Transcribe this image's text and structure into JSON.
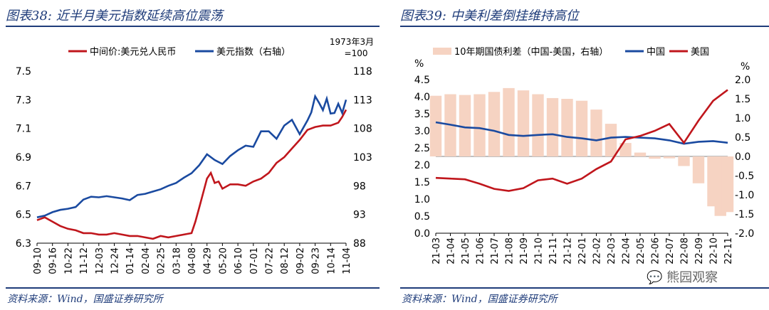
{
  "left": {
    "title": "图表38: 近半月美元指数延续高位震荡",
    "source": "资料来源：Wind，国盛证券研究所",
    "right_axis_note_1": "1973年3月",
    "right_axis_note_2": "=100",
    "chart_data": {
      "type": "line",
      "x_ticks": [
        "09-10",
        "09-16",
        "10-22",
        "11-12",
        "12-03",
        "12-24",
        "01-14",
        "02-04",
        "02-25",
        "03-18",
        "04-08",
        "04-29",
        "05-20",
        "06-10",
        "07-01",
        "07-22",
        "08-12",
        "09-02",
        "09-23",
        "10-14",
        "11-04"
      ],
      "left_ylim": [
        6.3,
        7.5
      ],
      "left_ticks": [
        "6.3",
        "6.5",
        "6.7",
        "6.9",
        "7.1",
        "7.3",
        "7.5"
      ],
      "right_ylim": [
        88,
        118
      ],
      "right_ticks": [
        "88",
        "93",
        "98",
        "103",
        "108",
        "113",
        "118"
      ],
      "series": [
        {
          "name": "中间价:美元兑人民币",
          "axis": "left",
          "color": "#c0161c",
          "values": [
            [
              0,
              6.46
            ],
            [
              2,
              6.48
            ],
            [
              4,
              6.45
            ],
            [
              6,
              6.42
            ],
            [
              8,
              6.4
            ],
            [
              10,
              6.39
            ],
            [
              12,
              6.37
            ],
            [
              14,
              6.37
            ],
            [
              16,
              6.36
            ],
            [
              18,
              6.36
            ],
            [
              20,
              6.37
            ],
            [
              22,
              6.36
            ],
            [
              24,
              6.35
            ],
            [
              26,
              6.35
            ],
            [
              28,
              6.34
            ],
            [
              30,
              6.33
            ],
            [
              32,
              6.35
            ],
            [
              34,
              6.34
            ],
            [
              36,
              6.35
            ],
            [
              38,
              6.36
            ],
            [
              40,
              6.37
            ],
            [
              41,
              6.45
            ],
            [
              42,
              6.55
            ],
            [
              43,
              6.65
            ],
            [
              44,
              6.75
            ],
            [
              45,
              6.79
            ],
            [
              46,
              6.72
            ],
            [
              47,
              6.73
            ],
            [
              48,
              6.68
            ],
            [
              50,
              6.71
            ],
            [
              52,
              6.71
            ],
            [
              54,
              6.7
            ],
            [
              56,
              6.73
            ],
            [
              58,
              6.75
            ],
            [
              60,
              6.79
            ],
            [
              62,
              6.86
            ],
            [
              64,
              6.9
            ],
            [
              66,
              6.96
            ],
            [
              68,
              7.02
            ],
            [
              70,
              7.09
            ],
            [
              72,
              7.11
            ],
            [
              74,
              7.12
            ],
            [
              76,
              7.12
            ],
            [
              78,
              7.14
            ],
            [
              79,
              7.18
            ],
            [
              80,
              7.23
            ]
          ]
        },
        {
          "name": "美元指数（右轴）",
          "axis": "right",
          "color": "#1a4aa0",
          "values": [
            [
              0,
              92.5
            ],
            [
              2,
              92.8
            ],
            [
              4,
              93.4
            ],
            [
              6,
              93.8
            ],
            [
              8,
              94
            ],
            [
              10,
              94.3
            ],
            [
              12,
              95.6
            ],
            [
              14,
              96.1
            ],
            [
              16,
              96
            ],
            [
              18,
              96.2
            ],
            [
              20,
              96
            ],
            [
              22,
              95.8
            ],
            [
              24,
              95.5
            ],
            [
              26,
              96.4
            ],
            [
              28,
              96.6
            ],
            [
              30,
              97
            ],
            [
              32,
              97.4
            ],
            [
              34,
              98
            ],
            [
              36,
              98.5
            ],
            [
              38,
              99.4
            ],
            [
              40,
              100.2
            ],
            [
              42,
              101.6
            ],
            [
              44,
              103.5
            ],
            [
              46,
              102.5
            ],
            [
              48,
              101.8
            ],
            [
              50,
              103.2
            ],
            [
              52,
              104.2
            ],
            [
              54,
              105
            ],
            [
              56,
              104.8
            ],
            [
              58,
              107.5
            ],
            [
              60,
              107.5
            ],
            [
              62,
              106.2
            ],
            [
              64,
              108.5
            ],
            [
              66,
              109.5
            ],
            [
              68,
              107
            ],
            [
              70,
              109.4
            ],
            [
              71,
              110.8
            ],
            [
              72,
              113.6
            ],
            [
              73,
              112.5
            ],
            [
              74,
              111.2
            ],
            [
              75,
              113.2
            ],
            [
              76,
              110.6
            ],
            [
              77,
              110.7
            ],
            [
              78,
              112.3
            ],
            [
              79,
              110.7
            ],
            [
              80,
              113
            ]
          ]
        }
      ]
    }
  },
  "right": {
    "title": "图表39: 中美利差倒挂维持高位",
    "source": "资料来源：Wind，国盛证券研究所",
    "left_unit": "%",
    "right_unit": "%",
    "watermark": "熊园观察",
    "chart_data": {
      "type": "line+area",
      "x_ticks": [
        "21-03",
        "21-04",
        "21-05",
        "21-06",
        "21-07",
        "21-08",
        "21-09",
        "21-10",
        "21-11",
        "21-12",
        "22-01",
        "22-02",
        "22-03",
        "22-04",
        "22-05",
        "22-06",
        "22-07",
        "22-08",
        "22-09",
        "22-10",
        "22-11"
      ],
      "left_ylim": [
        0,
        4.5
      ],
      "left_ticks": [
        "0.0",
        "0.5",
        "1.0",
        "1.5",
        "2.0",
        "2.5",
        "3.0",
        "3.5",
        "4.0",
        "4.5"
      ],
      "right_ylim": [
        -2.0,
        2.0
      ],
      "right_ticks": [
        "-2.0",
        "-1.5",
        "-1.0",
        "-0.5",
        "0.0",
        "0.5",
        "1.0",
        "1.5",
        "2.0"
      ],
      "series": [
        {
          "name": "10年期国债利差（中国-美国，右轴）",
          "axis": "right",
          "type": "area",
          "color": "#f6d3c2",
          "values": [
            [
              0,
              1.58
            ],
            [
              1,
              1.62
            ],
            [
              2,
              1.6
            ],
            [
              3,
              1.62
            ],
            [
              4,
              1.68
            ],
            [
              5,
              1.78
            ],
            [
              6,
              1.72
            ],
            [
              7,
              1.62
            ],
            [
              8,
              1.52
            ],
            [
              9,
              1.5
            ],
            [
              10,
              1.45
            ],
            [
              11,
              1.22
            ],
            [
              12,
              0.85
            ],
            [
              13,
              0.35
            ],
            [
              14,
              0.1
            ],
            [
              15,
              -0.06
            ],
            [
              16,
              -0.05
            ],
            [
              17,
              -0.25
            ],
            [
              18,
              -0.7
            ],
            [
              19,
              -1.3
            ],
            [
              19.5,
              -1.55
            ],
            [
              20,
              -1.45
            ]
          ]
        },
        {
          "name": "中国",
          "axis": "left",
          "color": "#1a4aa0",
          "values": [
            [
              0,
              3.25
            ],
            [
              1,
              3.18
            ],
            [
              2,
              3.1
            ],
            [
              3,
              3.08
            ],
            [
              4,
              3.0
            ],
            [
              5,
              2.88
            ],
            [
              6,
              2.85
            ],
            [
              7,
              2.88
            ],
            [
              8,
              2.9
            ],
            [
              9,
              2.82
            ],
            [
              10,
              2.78
            ],
            [
              11,
              2.72
            ],
            [
              12,
              2.8
            ],
            [
              13,
              2.82
            ],
            [
              14,
              2.8
            ],
            [
              15,
              2.78
            ],
            [
              16,
              2.72
            ],
            [
              17,
              2.62
            ],
            [
              18,
              2.68
            ],
            [
              19,
              2.7
            ],
            [
              20,
              2.65
            ]
          ]
        },
        {
          "name": "美国",
          "axis": "left",
          "color": "#c0161c",
          "values": [
            [
              0,
              1.62
            ],
            [
              1,
              1.6
            ],
            [
              2,
              1.58
            ],
            [
              3,
              1.45
            ],
            [
              4,
              1.3
            ],
            [
              5,
              1.24
            ],
            [
              6,
              1.32
            ],
            [
              7,
              1.55
            ],
            [
              8,
              1.6
            ],
            [
              9,
              1.45
            ],
            [
              10,
              1.6
            ],
            [
              11,
              1.88
            ],
            [
              12,
              2.1
            ],
            [
              13,
              2.75
            ],
            [
              14,
              2.85
            ],
            [
              15,
              3.0
            ],
            [
              16,
              3.2
            ],
            [
              17,
              2.65
            ],
            [
              18,
              3.3
            ],
            [
              19,
              3.88
            ],
            [
              20,
              4.2
            ]
          ]
        }
      ]
    }
  }
}
